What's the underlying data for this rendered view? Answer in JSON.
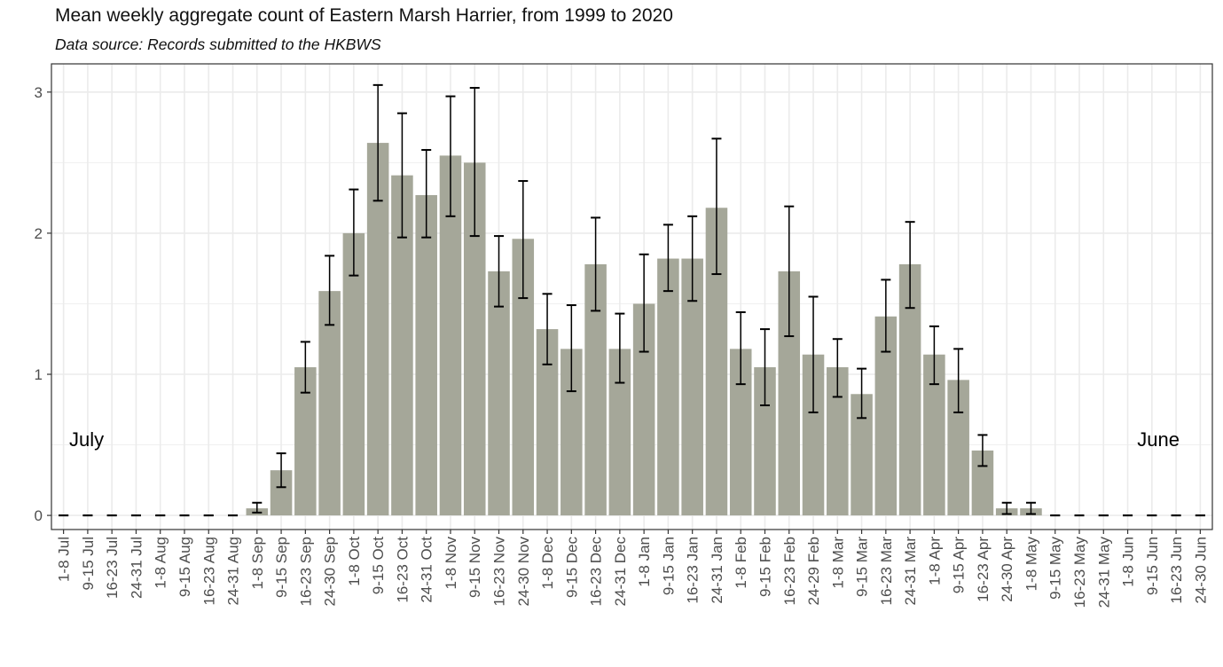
{
  "chart_data": {
    "type": "bar",
    "title": "Mean weekly aggregate count of Eastern Marsh Harrier, from 1999 to 2020",
    "subtitle": "Data source: Records submitted to the HKBWS",
    "xlabel": "",
    "ylabel": "",
    "ylim": [
      -0.1,
      3.2
    ],
    "yticks": [
      0,
      1,
      2,
      3
    ],
    "grid": true,
    "bar_color": "#a5a799",
    "categories": [
      "1-8 Jul",
      "9-15 Jul",
      "16-23 Jul",
      "24-31 Jul",
      "1-8 Aug",
      "9-15 Aug",
      "16-23 Aug",
      "24-31 Aug",
      "1-8 Sep",
      "9-15 Sep",
      "16-23 Sep",
      "24-30 Sep",
      "1-8 Oct",
      "9-15 Oct",
      "16-23 Oct",
      "24-31 Oct",
      "1-8 Nov",
      "9-15 Nov",
      "16-23 Nov",
      "24-30 Nov",
      "1-8 Dec",
      "9-15 Dec",
      "16-23 Dec",
      "24-31 Dec",
      "1-8 Jan",
      "9-15 Jan",
      "16-23 Jan",
      "24-31 Jan",
      "1-8 Feb",
      "9-15 Feb",
      "16-23 Feb",
      "24-29 Feb",
      "1-8 Mar",
      "9-15 Mar",
      "16-23 Mar",
      "24-31 Mar",
      "1-8 Apr",
      "9-15 Apr",
      "16-23 Apr",
      "24-30 Apr",
      "1-8 May",
      "9-15 May",
      "16-23 May",
      "24-31 May",
      "1-8 Jun",
      "9-15 Jun",
      "16-23 Jun",
      "24-30 Jun"
    ],
    "values": [
      0,
      0,
      0,
      0,
      0,
      0,
      0,
      0,
      0.05,
      0.32,
      1.05,
      1.59,
      2.0,
      2.64,
      2.41,
      2.27,
      2.55,
      2.5,
      1.73,
      1.96,
      1.32,
      1.18,
      1.78,
      1.18,
      1.5,
      1.82,
      1.82,
      2.18,
      1.18,
      1.05,
      1.73,
      1.14,
      1.05,
      0.86,
      1.41,
      1.78,
      1.14,
      0.96,
      0.46,
      0.05,
      0.05,
      0,
      0,
      0,
      0,
      0,
      0,
      0
    ],
    "error_low": [
      0,
      0,
      0,
      0,
      0,
      0,
      0,
      0,
      0.02,
      0.2,
      0.87,
      1.35,
      1.7,
      2.23,
      1.97,
      1.97,
      2.12,
      1.98,
      1.48,
      1.54,
      1.07,
      0.88,
      1.45,
      0.94,
      1.16,
      1.59,
      1.52,
      1.71,
      0.93,
      0.78,
      1.27,
      0.73,
      0.84,
      0.69,
      1.16,
      1.47,
      0.93,
      0.73,
      0.35,
      0.01,
      0.01,
      0,
      0,
      0,
      0,
      0,
      0,
      0
    ],
    "error_high": [
      0,
      0,
      0,
      0,
      0,
      0,
      0,
      0,
      0.09,
      0.44,
      1.23,
      1.84,
      2.31,
      3.05,
      2.85,
      2.59,
      2.97,
      3.03,
      1.98,
      2.37,
      1.57,
      1.49,
      2.11,
      1.43,
      1.85,
      2.06,
      2.12,
      2.67,
      1.44,
      1.32,
      2.19,
      1.55,
      1.25,
      1.04,
      1.67,
      2.08,
      1.34,
      1.18,
      0.57,
      0.09,
      0.09,
      0,
      0,
      0,
      0,
      0,
      0,
      0
    ],
    "annotations": [
      {
        "text": "July",
        "anchor": "left"
      },
      {
        "text": "June",
        "anchor": "right"
      }
    ]
  }
}
